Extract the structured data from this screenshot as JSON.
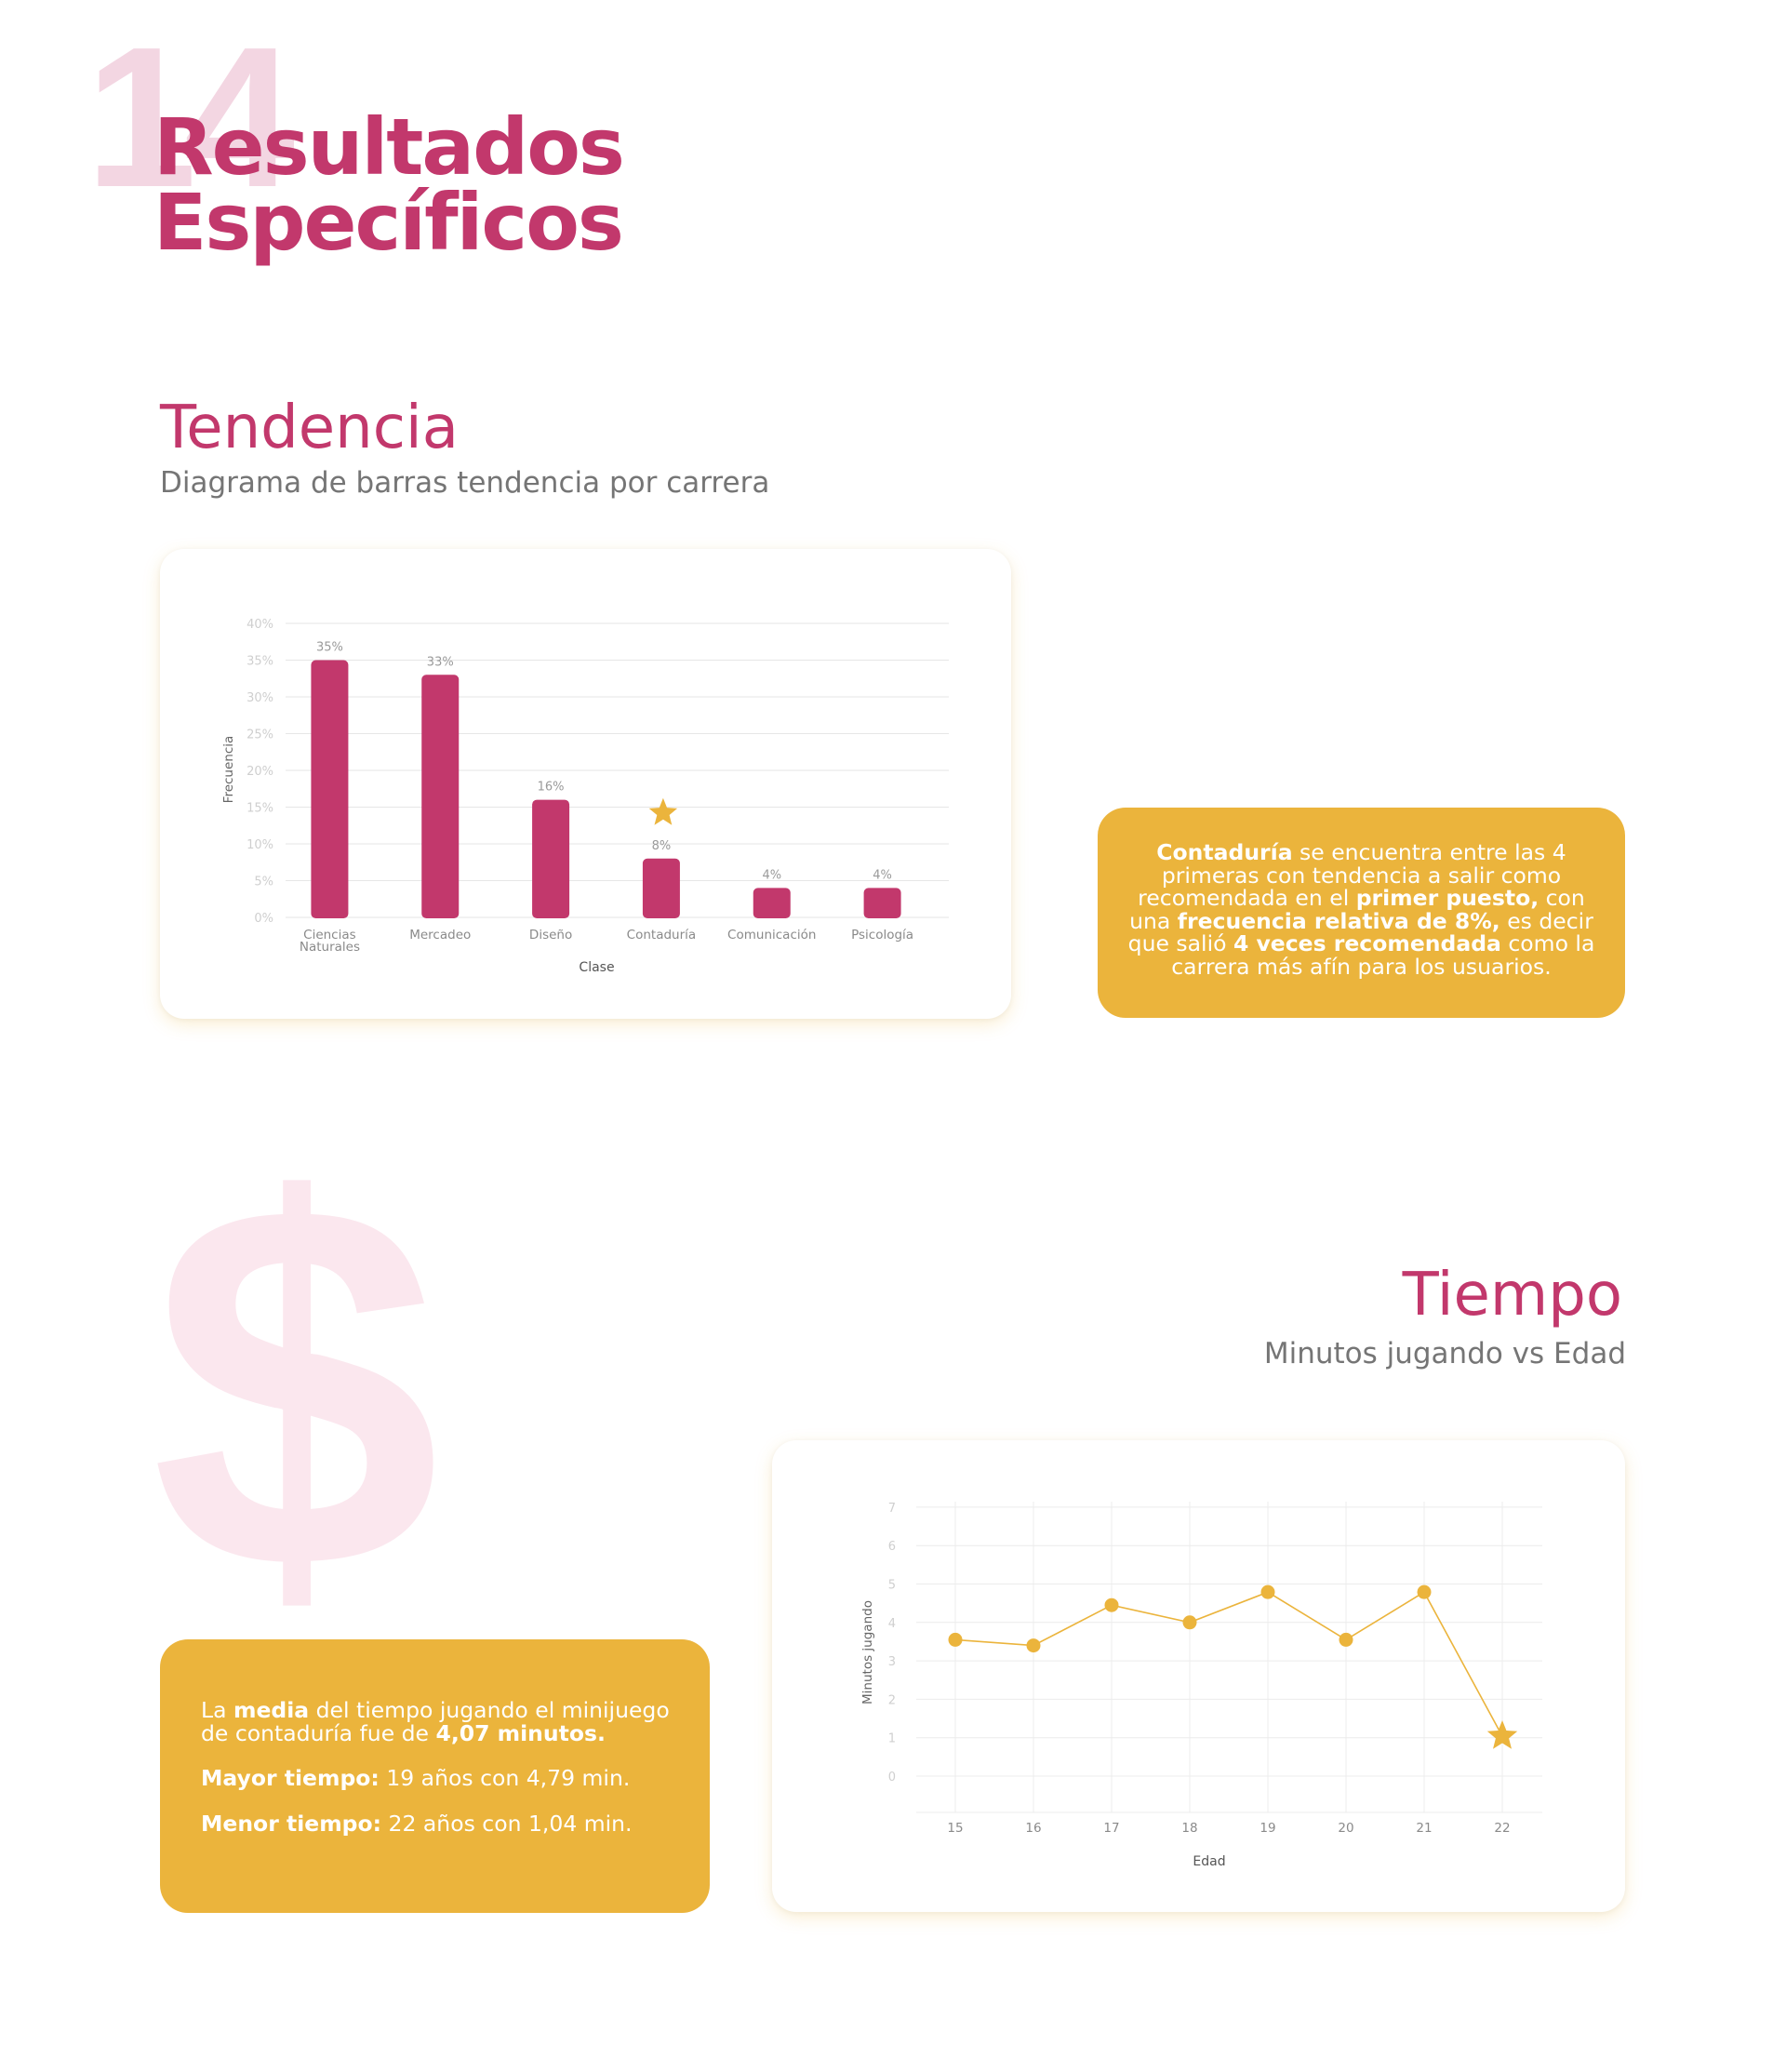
{
  "header": {
    "number": "14",
    "title_line1": "Resultados",
    "title_line2": "Específicos"
  },
  "tendencia": {
    "title": "Tendencia",
    "subtitle": "Diagrama de barras tendencia por carrera",
    "note": {
      "r1": "Contaduría",
      "r2": " se encuentra entre las 4 primeras con tendencia a salir como recomendada en el ",
      "r3": "primer puesto,",
      "r4": " con una ",
      "r5": "frecuencia relativa de 8%,",
      "r6": " es decir que salió ",
      "r7": "4 veces recomendada",
      "r8": " como la carrera más afín para los usuarios."
    }
  },
  "tiempo": {
    "title": "Tiempo",
    "subtitle": "Minutos jugando vs Edad",
    "background_symbol": "$",
    "note": {
      "p1a": "La ",
      "p1b": "media",
      "p1c": " del tiempo jugando el minijuego de contaduría fue de ",
      "p1d": "4,07 minutos.",
      "p2a": "Mayor tiempo:",
      "p2b": " 19 años con 4,79 min.",
      "p3a": "Menor tiempo:",
      "p3b": " 22 años con 1,04 min."
    }
  },
  "colors": {
    "primary": "#c2386c",
    "accent": "#ebb43c",
    "grid": "#e6e6e6",
    "axis_text": "#9a9a9a"
  },
  "chart_data": [
    {
      "type": "bar",
      "categories": [
        [
          "Ciencias",
          "Naturales"
        ],
        [
          "Mercadeo"
        ],
        [
          "Diseño"
        ],
        [
          "Contaduría"
        ],
        [
          "Comunicación"
        ],
        [
          "Psicología"
        ]
      ],
      "values": [
        35,
        33,
        16,
        8,
        4,
        4
      ],
      "value_labels": [
        "35%",
        "33%",
        "16%",
        "8%",
        "4%",
        "4%"
      ],
      "xlabel": "Clase",
      "ylabel": "Frecuencia",
      "ylim": [
        0,
        40
      ],
      "yticks": [
        0,
        5,
        10,
        15,
        20,
        25,
        30,
        35,
        40
      ],
      "ytick_labels": [
        "0%",
        "5%",
        "10%",
        "15%",
        "20%",
        "25%",
        "30%",
        "35%",
        "40%"
      ],
      "highlight_category": "Contaduría",
      "highlight_icon": "star-icon",
      "bar_color": "#c2386c",
      "grid": true
    },
    {
      "type": "line",
      "x": [
        15,
        16,
        17,
        18,
        19,
        20,
        21,
        22
      ],
      "y": [
        3.55,
        3.4,
        4.45,
        4.0,
        4.79,
        3.55,
        4.79,
        1.04
      ],
      "xlabel": "Edad",
      "ylabel": "Minutos jugando",
      "ylim": [
        0,
        7
      ],
      "yticks": [
        0,
        1,
        2,
        3,
        4,
        5,
        6,
        7
      ],
      "highlight_x": 22,
      "highlight_icon": "star-icon",
      "line_color": "#ebb43c",
      "grid": true
    }
  ]
}
